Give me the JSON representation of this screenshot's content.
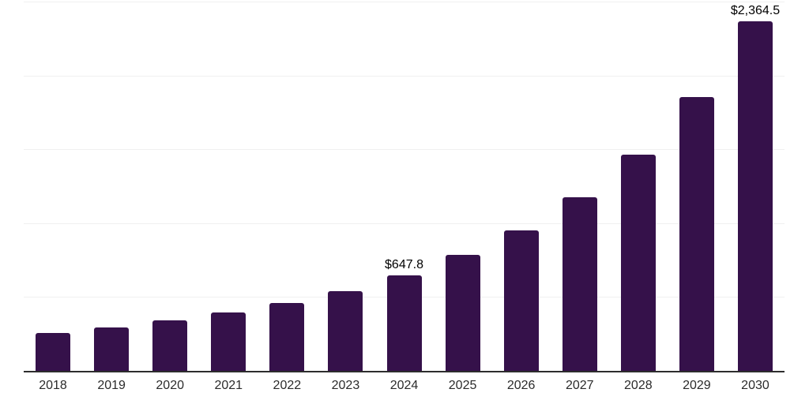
{
  "chart_data": {
    "type": "bar",
    "title": "",
    "xlabel": "",
    "ylabel": "",
    "categories": [
      "2018",
      "2019",
      "2020",
      "2021",
      "2022",
      "2023",
      "2024",
      "2025",
      "2026",
      "2027",
      "2028",
      "2029",
      "2030"
    ],
    "values": [
      258,
      293,
      341,
      394,
      460,
      542,
      647.8,
      783,
      952,
      1175,
      1464,
      1853,
      2364.5
    ],
    "annotations": [
      {
        "category": "2024",
        "index": 6,
        "text": "$647.8"
      },
      {
        "category": "2030",
        "index": 12,
        "text": "$2,364.5"
      }
    ],
    "ylim": [
      0,
      2500
    ],
    "gridline_step": 500,
    "grid": true,
    "legend": false,
    "y_axis_labels_visible": false,
    "colors": {
      "bar": "#35114A",
      "axis_line": "#2D2D2D",
      "gridline": "#F0F0F0",
      "annotation_text": "#000000",
      "tick_text": "#2B2B2B",
      "background": "#FFFFFF"
    }
  }
}
